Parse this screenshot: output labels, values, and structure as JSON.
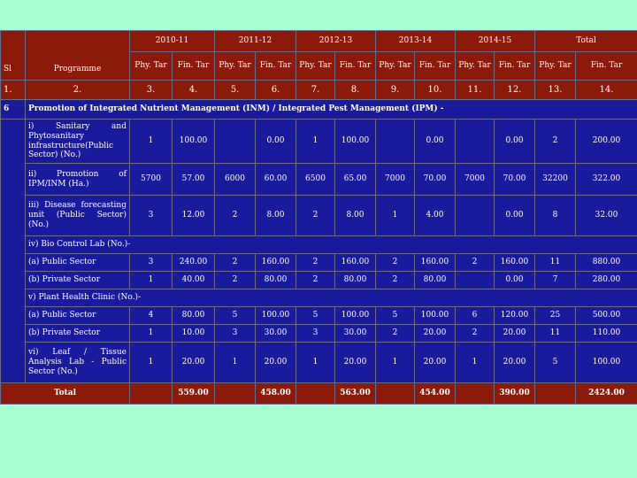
{
  "header": {
    "years": [
      "2010-11",
      "2011-12",
      "2012-13",
      "2013-14",
      "2014-15",
      "Total"
    ],
    "sl": "Sl",
    "programme": "Programme",
    "sub": [
      "Phy. Tar",
      "Fin. Tar",
      "Phy. Tar",
      "Fin. Tar",
      "Phy. Tar",
      "Fin. Tar",
      "Phy. Tar",
      "Fin. Tar",
      "Phy. Tar",
      "Fin. Tar",
      "Phy. Tar",
      "Fin. Tar"
    ],
    "numbers": [
      "1.",
      "2.",
      "3.",
      "4.",
      "5.",
      "6.",
      "7.",
      "8.",
      "9.",
      "10.",
      "11.",
      "12.",
      "13.",
      "14."
    ]
  },
  "section_main": {
    "sl": "6",
    "title": "Promotion of Integrated Nutrient Management (INM) / Integrated Pest Management (IPM) -"
  },
  "rows_a": [
    {
      "programme": "i) Sanitary and Phytosanitary infrastructure(Public Sector) (No.)",
      "values": [
        "1",
        "100.00",
        "",
        "0.00",
        "1",
        "100.00",
        "",
        "0.00",
        "",
        "0.00",
        "2",
        "200.00"
      ]
    },
    {
      "programme": "ii) Promotion of IPM/INM (Ha.)",
      "values": [
        "5700",
        "57.00",
        "6000",
        "60.00",
        "6500",
        "65.00",
        "7000",
        "70.00",
        "7000",
        "70.00",
        "32200",
        "322.00"
      ]
    },
    {
      "programme": "iii) Disease forecasting unit (Public Sector) (No.)",
      "values": [
        "3",
        "12.00",
        "2",
        "8.00",
        "2",
        "8.00",
        "1",
        "4.00",
        "",
        "0.00",
        "8",
        "32.00"
      ]
    }
  ],
  "section_iv": "iv) Bio Control Lab (No.)-",
  "rows_iv": [
    {
      "programme": "(a) Public Sector",
      "values": [
        "3",
        "240.00",
        "2",
        "160.00",
        "2",
        "160.00",
        "2",
        "160.00",
        "2",
        "160.00",
        "11",
        "880.00"
      ]
    },
    {
      "programme": "(b) Private Sector",
      "values": [
        "1",
        "40.00",
        "2",
        "80.00",
        "2",
        "80.00",
        "2",
        "80.00",
        "",
        "0.00",
        "7",
        "280.00"
      ]
    }
  ],
  "section_v": "v) Plant Health Clinic (No.)-",
  "rows_v": [
    {
      "programme": "(a) Public Sector",
      "values": [
        "4",
        "80.00",
        "5",
        "100.00",
        "5",
        "100.00",
        "5",
        "100.00",
        "6",
        "120.00",
        "25",
        "500.00"
      ]
    },
    {
      "programme": "(b) Private Sector",
      "values": [
        "1",
        "10.00",
        "3",
        "30.00",
        "3",
        "30.00",
        "2",
        "20.00",
        "2",
        "20.00",
        "11",
        "110.00"
      ]
    },
    {
      "programme": "vi) Leaf / Tissue Analysis Lab - Public Sector (No.)",
      "values": [
        "1",
        "20.00",
        "1",
        "20.00",
        "1",
        "20.00",
        "1",
        "20.00",
        "1",
        "20.00",
        "5",
        "100.00"
      ]
    }
  ],
  "total": {
    "label": "Total",
    "values": [
      "",
      "559.00",
      "",
      "458.00",
      "",
      "563.00",
      "",
      "454.00",
      "",
      "390.00",
      "",
      "2424.00"
    ]
  }
}
